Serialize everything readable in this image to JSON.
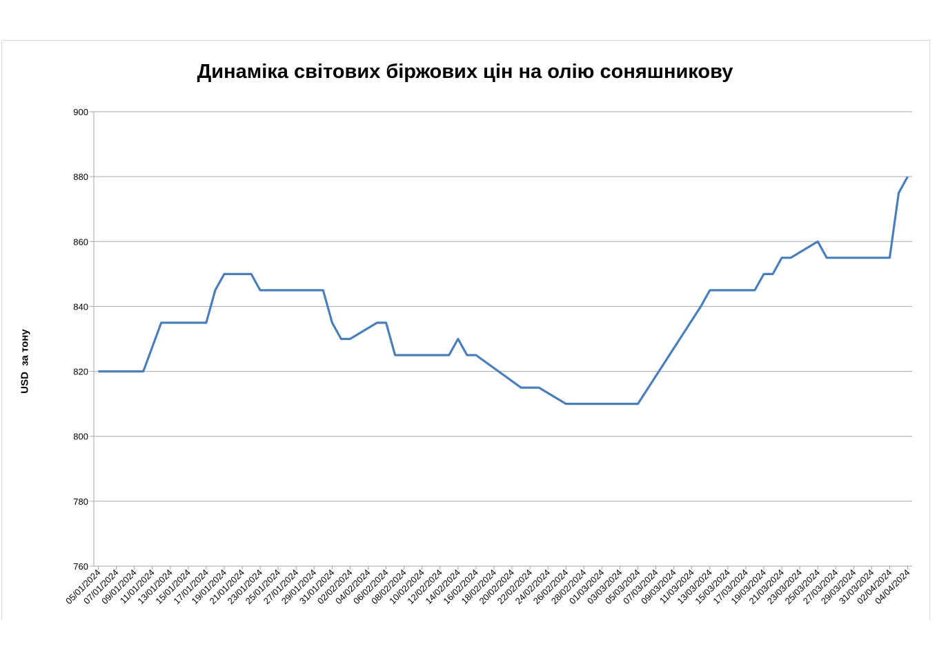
{
  "chart_data": {
    "type": "line",
    "title": "Динаміка світових біржових цін на олію соняшникову",
    "xlabel": "",
    "ylabel": "USD  за тону",
    "ylim": [
      760,
      900
    ],
    "yticks": [
      760,
      780,
      800,
      820,
      840,
      860,
      880,
      900
    ],
    "xlim": [
      "2024-01-05",
      "2024-04-04"
    ],
    "grid": "horizontal",
    "legend": "none",
    "line_color": "#4a7ebb",
    "xticks": [
      "05/01/2024",
      "07/01/2024",
      "09/01/2024",
      "11/01/2024",
      "13/01/2024",
      "15/01/2024",
      "17/01/2024",
      "19/01/2024",
      "21/01/2024",
      "23/01/2024",
      "25/01/2024",
      "27/01/2024",
      "29/01/2024",
      "31/01/2024",
      "02/02/2024",
      "04/02/2024",
      "06/02/2024",
      "08/02/2024",
      "10/02/2024",
      "12/02/2024",
      "14/02/2024",
      "16/02/2024",
      "18/02/2024",
      "20/02/2024",
      "22/02/2024",
      "24/02/2024",
      "26/02/2024",
      "28/02/2024",
      "01/03/2024",
      "03/03/2024",
      "05/03/2024",
      "07/03/2024",
      "09/03/2024",
      "11/03/2024",
      "13/03/2024",
      "15/03/2024",
      "17/03/2024",
      "19/03/2024",
      "21/03/2024",
      "23/03/2024",
      "25/03/2024",
      "27/03/2024",
      "29/03/2024",
      "31/03/2024",
      "02/04/2024",
      "04/04/2024"
    ],
    "x": [
      "2024-01-05",
      "2024-01-10",
      "2024-01-12",
      "2024-01-17",
      "2024-01-18",
      "2024-01-19",
      "2024-01-22",
      "2024-01-23",
      "2024-01-30",
      "2024-01-31",
      "2024-02-01",
      "2024-02-02",
      "2024-02-05",
      "2024-02-06",
      "2024-02-07",
      "2024-02-13",
      "2024-02-14",
      "2024-02-15",
      "2024-02-16",
      "2024-02-21",
      "2024-02-23",
      "2024-02-26",
      "2024-03-05",
      "2024-03-12",
      "2024-03-13",
      "2024-03-18",
      "2024-03-19",
      "2024-03-20",
      "2024-03-21",
      "2024-03-22",
      "2024-03-25",
      "2024-03-26",
      "2024-04-02",
      "2024-04-03",
      "2024-04-04"
    ],
    "values": [
      820,
      820,
      835,
      835,
      845,
      850,
      850,
      845,
      845,
      835,
      830,
      830,
      835,
      835,
      825,
      825,
      830,
      825,
      825,
      815,
      815,
      810,
      810,
      840,
      845,
      845,
      850,
      850,
      855,
      855,
      860,
      855,
      855,
      875,
      880
    ]
  }
}
